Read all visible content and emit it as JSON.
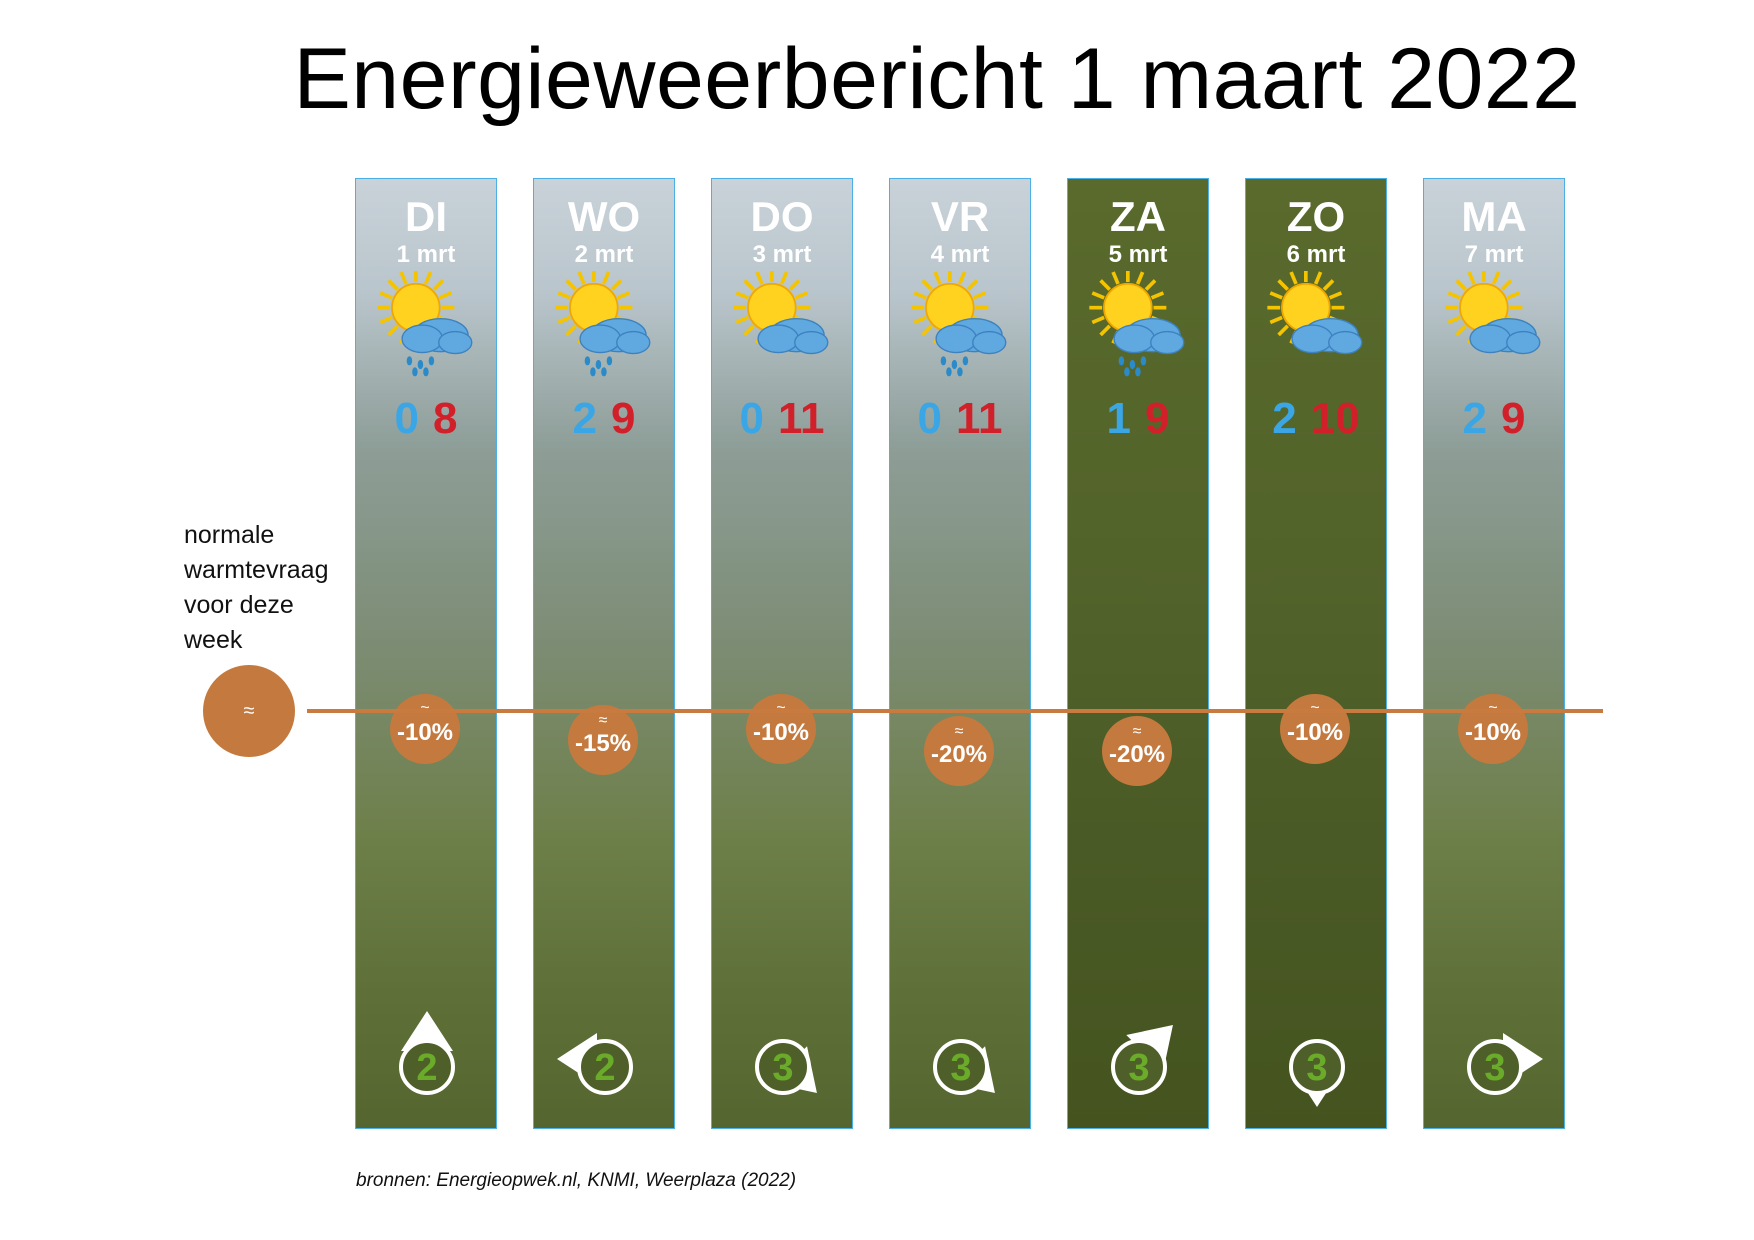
{
  "title": "Energieweerbericht 1 maart 2022",
  "normal_label": [
    "normale",
    "warmtevraag",
    "voor deze",
    "week"
  ],
  "normal_symbol": "≈",
  "sources": "bronnen: Energieopwek.nl, KNMI, Weerplaza (2022)",
  "colors": {
    "demand": "#c47a3e",
    "min_temp": "#3aa6e6",
    "max_temp": "#d2202a",
    "wind_number": "#6aab2a",
    "column_border": "#4ab0e6"
  },
  "days": [
    {
      "name": "DI",
      "date": "1 mrt",
      "weather_icon": "sun-cloud-rain-icon",
      "rain": true,
      "min": "0",
      "max": "8",
      "demand_symbol": "≈",
      "demand_pct": "-10%",
      "demand_fraction": -0.1,
      "wind_force": "2",
      "wind_direction": "north",
      "weekend": false
    },
    {
      "name": "WO",
      "date": "2 mrt",
      "weather_icon": "sun-cloud-rain-icon",
      "rain": true,
      "min": "2",
      "max": "9",
      "demand_symbol": "≈",
      "demand_pct": "-15%",
      "demand_fraction": -0.15,
      "wind_force": "2",
      "wind_direction": "west",
      "weekend": false
    },
    {
      "name": "DO",
      "date": "3 mrt",
      "weather_icon": "sun-cloud-icon",
      "rain": false,
      "min": "0",
      "max": "11",
      "demand_symbol": "≈",
      "demand_pct": "-10%",
      "demand_fraction": -0.1,
      "wind_force": "3",
      "wind_direction": "southeast",
      "weekend": false
    },
    {
      "name": "VR",
      "date": "4 mrt",
      "weather_icon": "sun-cloud-rain-icon",
      "rain": true,
      "min": "0",
      "max": "11",
      "demand_symbol": "≈",
      "demand_pct": "-20%",
      "demand_fraction": -0.2,
      "wind_force": "3",
      "wind_direction": "southeast",
      "weekend": false
    },
    {
      "name": "ZA",
      "date": "5 mrt",
      "weather_icon": "sun-cloud-rain-icon",
      "rain": true,
      "min": "1",
      "max": "9",
      "demand_symbol": "≈",
      "demand_pct": "-20%",
      "demand_fraction": -0.2,
      "wind_force": "3",
      "wind_direction": "northeast",
      "weekend": true
    },
    {
      "name": "ZO",
      "date": "6 mrt",
      "weather_icon": "sun-cloud-icon",
      "rain": false,
      "min": "2",
      "max": "10",
      "demand_symbol": "≈",
      "demand_pct": "-10%",
      "demand_fraction": -0.1,
      "wind_force": "3",
      "wind_direction": "south",
      "weekend": true
    },
    {
      "name": "MA",
      "date": "7 mrt",
      "weather_icon": "sun-cloud-icon",
      "rain": false,
      "min": "2",
      "max": "9",
      "demand_symbol": "≈",
      "demand_pct": "-10%",
      "demand_fraction": -0.1,
      "wind_force": "3",
      "wind_direction": "east",
      "weekend": false
    }
  ]
}
